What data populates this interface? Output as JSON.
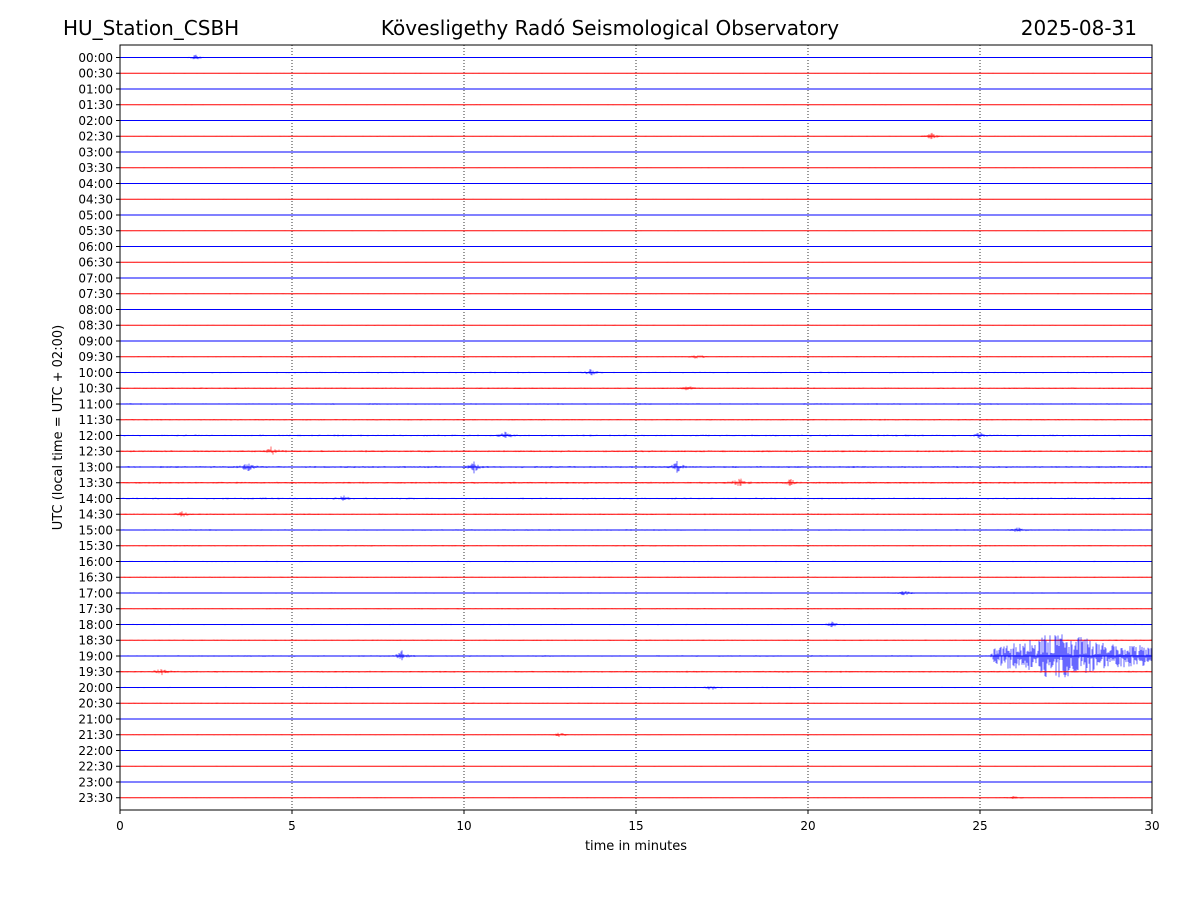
{
  "header": {
    "station": "HU_Station_CSBH",
    "observatory": "Kövesligethy Radó Seismological Observatory",
    "date": "2025-08-31"
  },
  "chart_data": {
    "type": "line",
    "title": "Kövesligethy Radó Seismological Observatory",
    "xlabel": "time in minutes",
    "ylabel": "UTC (local time = UTC + 02:00)",
    "xlim": [
      0,
      30
    ],
    "xticks": [
      "0",
      "5",
      "10",
      "15",
      "20",
      "25",
      "30"
    ],
    "grid": "vertical dotted at 5-minute intervals",
    "colors": [
      "#0000ff",
      "#ff0000"
    ],
    "row_labels": [
      "00:00",
      "00:30",
      "01:00",
      "01:30",
      "02:00",
      "02:30",
      "03:00",
      "03:30",
      "04:00",
      "04:30",
      "05:00",
      "05:30",
      "06:00",
      "06:30",
      "07:00",
      "07:30",
      "08:00",
      "08:30",
      "09:00",
      "09:30",
      "10:00",
      "10:30",
      "11:00",
      "11:30",
      "12:00",
      "12:30",
      "13:00",
      "13:30",
      "14:00",
      "14:30",
      "15:00",
      "15:30",
      "16:00",
      "16:30",
      "17:00",
      "17:30",
      "18:00",
      "18:30",
      "19:00",
      "19:30",
      "20:00",
      "20:30",
      "21:00",
      "21:30",
      "22:00",
      "22:30",
      "23:00",
      "23:30"
    ],
    "noise_level": [
      0.3,
      0.3,
      0.3,
      0.3,
      0.3,
      0.35,
      0.3,
      0.3,
      0.3,
      0.3,
      0.3,
      0.3,
      0.3,
      0.3,
      0.3,
      0.35,
      0.35,
      0.35,
      0.4,
      0.45,
      0.6,
      0.6,
      0.6,
      0.6,
      0.7,
      0.8,
      0.8,
      0.8,
      0.7,
      0.6,
      0.6,
      0.5,
      0.5,
      0.5,
      0.5,
      0.5,
      0.5,
      0.5,
      0.6,
      0.7,
      0.5,
      0.45,
      0.3,
      0.35,
      0.3,
      0.3,
      0.3,
      0.35
    ],
    "events": [
      {
        "row": "00:00",
        "minute": 2.2,
        "amplitude": 3
      },
      {
        "row": "02:30",
        "minute": 23.6,
        "amplitude": 4
      },
      {
        "row": "09:30",
        "minute": 16.8,
        "amplitude": 3
      },
      {
        "row": "10:00",
        "minute": 13.7,
        "amplitude": 4
      },
      {
        "row": "10:30",
        "minute": 16.5,
        "amplitude": 3
      },
      {
        "row": "12:00",
        "minute": 11.2,
        "amplitude": 4
      },
      {
        "row": "12:00",
        "minute": 25.0,
        "amplitude": 3
      },
      {
        "row": "12:30",
        "minute": 4.4,
        "amplitude": 5
      },
      {
        "row": "13:00",
        "minute": 3.7,
        "amplitude": 5
      },
      {
        "row": "13:00",
        "minute": 10.3,
        "amplitude": 6
      },
      {
        "row": "13:00",
        "minute": 16.2,
        "amplitude": 6
      },
      {
        "row": "13:30",
        "minute": 18.0,
        "amplitude": 5
      },
      {
        "row": "13:30",
        "minute": 19.5,
        "amplitude": 4
      },
      {
        "row": "14:00",
        "minute": 6.5,
        "amplitude": 3
      },
      {
        "row": "14:30",
        "minute": 1.8,
        "amplitude": 3
      },
      {
        "row": "15:00",
        "minute": 26.1,
        "amplitude": 3
      },
      {
        "row": "17:00",
        "minute": 22.8,
        "amplitude": 3
      },
      {
        "row": "18:00",
        "minute": 20.7,
        "amplitude": 3
      },
      {
        "row": "19:00",
        "minute": 8.2,
        "amplitude": 5
      },
      {
        "row": "19:30",
        "minute": 1.2,
        "amplitude": 4
      },
      {
        "row": "20:00",
        "minute": 17.2,
        "amplitude": 3
      },
      {
        "row": "21:30",
        "minute": 12.8,
        "amplitude": 3
      },
      {
        "row": "23:30",
        "minute": 26.0,
        "amplitude": 2
      }
    ],
    "earthquake": {
      "row": "19:00",
      "start_minute": 25.3,
      "end_minute": 30,
      "peak_minute": 27.3,
      "amplitude": 22
    }
  }
}
